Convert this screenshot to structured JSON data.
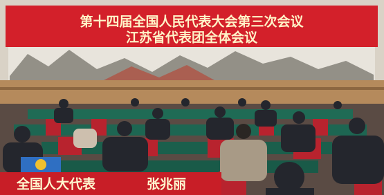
{
  "banner": {
    "line1": "第十四届全国人民代表大会第三次会议",
    "line2": "江苏省代表团全体会议"
  },
  "caption": {
    "title": "全国人大代表",
    "name": "张兆丽"
  }
}
